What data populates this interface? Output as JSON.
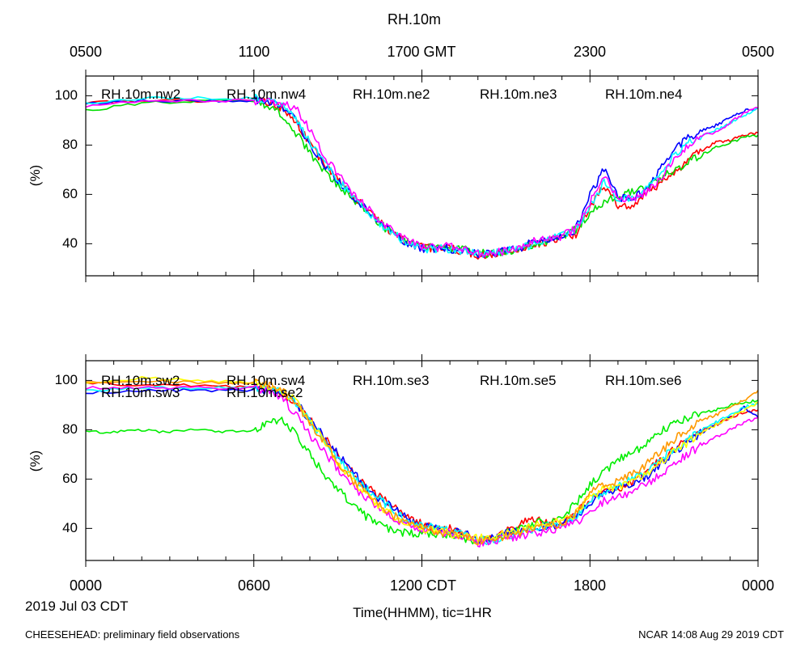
{
  "page_title": "RH.10m",
  "top_axis_ticks": [
    "0500",
    "1100",
    "1700 GMT",
    "2300",
    "0500"
  ],
  "bottom_axis_ticks": [
    "0000",
    "0600",
    "1200 CDT",
    "1800",
    "0000"
  ],
  "date_label": "2019 Jul 03 CDT",
  "xlabel": "Time(HHMM), tic=1HR",
  "footer_left": "CHEESEHEAD: preliminary field observations",
  "footer_right": "NCAR 14:08 Aug 29 2019 CDT",
  "chart_data": [
    {
      "type": "line",
      "ylabel": "(%)",
      "ylim": [
        27,
        108
      ],
      "xlim": [
        0,
        24
      ],
      "x_units": "hours CDT",
      "yticks": [
        40,
        60,
        80,
        100
      ],
      "series": [
        {
          "name": "RH.10m.nw2",
          "color": "#ff0000",
          "x": [
            0,
            2,
            4,
            6,
            6.5,
            7,
            7.5,
            8,
            8.5,
            9,
            9.5,
            10,
            10.5,
            11,
            11.5,
            12,
            12.5,
            13,
            13.5,
            14,
            14.5,
            15,
            15.5,
            16,
            16.5,
            17,
            17.5,
            18,
            18.5,
            19,
            19.5,
            20,
            20.5,
            21,
            21.5,
            22,
            22.5,
            23,
            23.5,
            24
          ],
          "y": [
            97,
            98,
            98,
            98,
            97,
            95,
            90,
            80,
            73,
            66,
            60,
            54,
            49,
            44,
            40,
            39,
            38,
            38,
            37,
            35,
            36,
            37,
            38,
            40,
            41,
            42,
            44,
            55,
            64,
            55,
            56,
            60,
            64,
            69,
            74,
            78,
            81,
            82,
            84,
            85
          ]
        },
        {
          "name": "RH.10m.nw4",
          "color": "#00dd00",
          "x": [
            0,
            2,
            4,
            6,
            6.5,
            7,
            7.5,
            8,
            8.5,
            9,
            9.5,
            10,
            10.5,
            11,
            11.5,
            12,
            12.5,
            13,
            13.5,
            14,
            14.5,
            15,
            15.5,
            16,
            16.5,
            17,
            17.5,
            18,
            18.5,
            19,
            19.5,
            20,
            20.5,
            21,
            21.5,
            22,
            22.5,
            23,
            23.5,
            24
          ],
          "y": [
            94,
            97,
            98,
            98,
            96,
            92,
            85,
            77,
            70,
            64,
            59,
            53,
            48,
            44,
            41,
            39,
            38,
            38,
            38,
            36,
            36,
            37,
            38,
            40,
            41,
            43,
            46,
            52,
            57,
            59,
            61,
            63,
            66,
            70,
            73,
            76,
            79,
            81,
            83,
            84
          ]
        },
        {
          "name": "RH.10m.ne2",
          "color": "#0000ff",
          "x": [
            0,
            2,
            4,
            6,
            6.5,
            7,
            7.5,
            8,
            8.5,
            9,
            9.5,
            10,
            10.5,
            11,
            11.5,
            12,
            12.5,
            13,
            13.5,
            14,
            14.5,
            15,
            15.5,
            16,
            16.5,
            17,
            17.5,
            18,
            18.5,
            19,
            19.5,
            20,
            20.5,
            21,
            21.5,
            22,
            22.5,
            23,
            23.5,
            24
          ],
          "y": [
            97,
            98,
            98,
            98,
            98,
            96,
            90,
            80,
            72,
            66,
            59,
            54,
            48,
            44,
            40,
            38,
            38,
            38,
            37,
            36,
            36,
            37,
            38,
            41,
            42,
            43,
            46,
            60,
            70,
            59,
            58,
            62,
            70,
            78,
            83,
            86,
            88,
            91,
            94,
            95
          ]
        },
        {
          "name": "RH.10m.ne3",
          "color": "#00ffff",
          "x": [
            0,
            2,
            4,
            6,
            6.5,
            7,
            7.5,
            8,
            8.5,
            9,
            9.5,
            10,
            10.5,
            11,
            11.5,
            12,
            12.5,
            13,
            13.5,
            14,
            14.5,
            15,
            15.5,
            16,
            16.5,
            17,
            17.5,
            18,
            18.5,
            19,
            19.5,
            20,
            20.5,
            21,
            21.5,
            22,
            22.5,
            23,
            23.5,
            24
          ],
          "y": [
            97,
            99,
            99,
            99,
            98,
            96,
            91,
            81,
            73,
            66,
            60,
            54,
            48,
            44,
            40,
            38,
            38,
            38,
            37,
            36,
            36,
            37,
            38,
            40,
            42,
            43,
            46,
            55,
            65,
            58,
            58,
            62,
            68,
            76,
            81,
            84,
            86,
            89,
            92,
            95
          ]
        },
        {
          "name": "RH.10m.ne4",
          "color": "#ff00ff",
          "x": [
            0,
            2,
            4,
            6,
            6.5,
            7,
            7.5,
            8,
            8.5,
            9,
            9.5,
            10,
            10.5,
            11,
            11.5,
            12,
            12.5,
            13,
            13.5,
            14,
            14.5,
            15,
            15.5,
            16,
            16.5,
            17,
            17.5,
            18,
            18.5,
            19,
            19.5,
            20,
            20.5,
            21,
            21.5,
            22,
            22.5,
            23,
            23.5,
            24
          ],
          "y": [
            96,
            98,
            98,
            98,
            98,
            97,
            95,
            86,
            76,
            68,
            61,
            55,
            49,
            45,
            41,
            39,
            38,
            39,
            38,
            36,
            36,
            37,
            39,
            41,
            42,
            43,
            46,
            57,
            67,
            59,
            58,
            61,
            66,
            74,
            80,
            84,
            85,
            89,
            93,
            95
          ]
        }
      ]
    },
    {
      "type": "line",
      "ylabel": "(%)",
      "ylim": [
        27,
        108
      ],
      "xlim": [
        0,
        24
      ],
      "x_units": "hours CDT",
      "yticks": [
        40,
        60,
        80,
        100
      ],
      "series": [
        {
          "name": "RH.10m.sw2",
          "color": "#ff0000",
          "x": [
            0,
            2,
            4,
            6,
            6.5,
            7,
            7.5,
            8,
            8.5,
            9,
            9.5,
            10,
            10.5,
            11,
            11.5,
            12,
            12.5,
            13,
            13.5,
            14,
            14.5,
            15,
            15.5,
            16,
            16.5,
            17,
            17.5,
            18,
            18.5,
            19,
            19.5,
            20,
            20.5,
            21,
            21.5,
            22,
            22.5,
            23,
            23.5,
            24
          ],
          "y": [
            99,
            98,
            98,
            97,
            97,
            95,
            90,
            84,
            77,
            70,
            63,
            57,
            53,
            49,
            45,
            42,
            40,
            40,
            38,
            35,
            36,
            39,
            42,
            44,
            42,
            43,
            46,
            52,
            55,
            56,
            58,
            63,
            68,
            72,
            76,
            80,
            82,
            85,
            87,
            88
          ]
        },
        {
          "name": "RH.10m.sw3",
          "color": "#00ee00",
          "x": [
            0,
            1,
            2,
            3,
            4,
            5,
            6,
            6.5,
            7,
            7.5,
            8,
            8.5,
            9,
            9.5,
            10,
            10.5,
            11,
            11.5,
            12,
            12.5,
            13,
            13.5,
            14,
            14.5,
            15,
            15.5,
            16,
            16.5,
            17,
            17.5,
            18,
            18.5,
            19,
            19.5,
            20,
            20.5,
            21,
            21.5,
            22,
            22.5,
            23,
            23.5,
            24
          ],
          "y": [
            79,
            79,
            80,
            79,
            80,
            79,
            80,
            82,
            85,
            78,
            70,
            62,
            56,
            50,
            45,
            42,
            39,
            38,
            38,
            37,
            38,
            36,
            35,
            36,
            38,
            40,
            42,
            43,
            45,
            50,
            58,
            63,
            68,
            71,
            74,
            79,
            82,
            85,
            87,
            88,
            90,
            91,
            92
          ]
        },
        {
          "name": "RH.10m.sw4",
          "color": "#0000ff",
          "x": [
            0,
            2,
            4,
            6,
            6.5,
            7,
            7.5,
            8,
            8.5,
            9,
            9.5,
            10,
            10.5,
            11,
            11.5,
            12,
            12.5,
            13,
            13.5,
            14,
            14.5,
            15,
            15.5,
            16,
            16.5,
            17,
            17.5,
            18,
            18.5,
            19,
            19.5,
            20,
            20.5,
            21,
            21.5,
            22,
            22.5,
            23,
            23.5,
            24
          ],
          "y": [
            95,
            96,
            96,
            96,
            96,
            95,
            91,
            84,
            77,
            70,
            63,
            57,
            52,
            48,
            44,
            41,
            40,
            39,
            38,
            35,
            36,
            38,
            39,
            40,
            41,
            42,
            45,
            50,
            54,
            56,
            58,
            61,
            66,
            71,
            75,
            79,
            82,
            85,
            89,
            85
          ]
        },
        {
          "name": "RH.10m.se2",
          "color": "#00ffff",
          "x": [
            0,
            2,
            4,
            6,
            6.5,
            7,
            7.5,
            8,
            8.5,
            9,
            9.5,
            10,
            10.5,
            11,
            11.5,
            12,
            12.5,
            13,
            13.5,
            14,
            14.5,
            15,
            15.5,
            16,
            16.5,
            17,
            17.5,
            18,
            18.5,
            19,
            19.5,
            20,
            20.5,
            21,
            21.5,
            22,
            22.5,
            23,
            23.5,
            24
          ],
          "y": [
            96,
            97,
            97,
            97,
            97,
            95,
            91,
            84,
            76,
            69,
            62,
            56,
            52,
            47,
            43,
            41,
            40,
            39,
            38,
            35,
            35,
            37,
            38,
            40,
            41,
            42,
            45,
            51,
            55,
            57,
            60,
            63,
            68,
            72,
            76,
            80,
            83,
            86,
            89,
            91
          ]
        },
        {
          "name": "RH.10m.se3",
          "color": "#ff00ff",
          "x": [
            0,
            2,
            4,
            6,
            6.5,
            7,
            7.5,
            8,
            8.5,
            9,
            9.5,
            10,
            10.5,
            11,
            11.5,
            12,
            12.5,
            13,
            13.5,
            14,
            14.5,
            15,
            15.5,
            16,
            16.5,
            17,
            17.5,
            18,
            18.5,
            19,
            19.5,
            20,
            20.5,
            21,
            21.5,
            22,
            22.5,
            23,
            23.5,
            24
          ],
          "y": [
            97,
            97,
            97,
            97,
            96,
            93,
            86,
            78,
            71,
            64,
            58,
            52,
            48,
            44,
            41,
            39,
            39,
            38,
            37,
            34,
            35,
            36,
            37,
            38,
            39,
            40,
            42,
            47,
            51,
            53,
            55,
            58,
            62,
            66,
            70,
            74,
            77,
            80,
            83,
            85
          ]
        },
        {
          "name": "RH.10m.se5",
          "color": "#ffff00",
          "x": [
            0,
            2,
            4,
            6,
            6.5,
            7,
            7.5,
            8,
            8.5,
            9,
            9.5,
            10,
            10.5,
            11,
            11.5,
            12,
            12.5,
            13,
            13.5,
            14,
            14.5,
            15,
            15.5,
            16,
            16.5,
            17,
            17.5,
            18,
            18.5,
            19,
            19.5,
            20,
            20.5,
            21,
            21.5,
            22,
            22.5,
            23,
            23.5,
            24
          ],
          "y": [
            99,
            101,
            100,
            99,
            98,
            96,
            92,
            84,
            75,
            67,
            60,
            54,
            49,
            45,
            42,
            40,
            39,
            38,
            37,
            36,
            36,
            38,
            39,
            41,
            42,
            43,
            46,
            53,
            56,
            57,
            59,
            62,
            67,
            71,
            75,
            79,
            82,
            85,
            88,
            91
          ]
        },
        {
          "name": "RH.10m.se6",
          "color": "#ff9900",
          "x": [
            0,
            2,
            4,
            6,
            6.5,
            7,
            7.5,
            8,
            8.5,
            9,
            9.5,
            10,
            10.5,
            11,
            11.5,
            12,
            12.5,
            13,
            13.5,
            14,
            14.5,
            15,
            15.5,
            16,
            16.5,
            17,
            17.5,
            18,
            18.5,
            19,
            19.5,
            20,
            20.5,
            21,
            21.5,
            22,
            22.5,
            23,
            23.5,
            24
          ],
          "y": [
            99,
            100,
            99,
            99,
            98,
            96,
            91,
            83,
            75,
            67,
            60,
            54,
            49,
            45,
            42,
            40,
            39,
            38,
            37,
            35,
            36,
            37,
            38,
            40,
            41,
            42,
            46,
            54,
            58,
            59,
            62,
            66,
            71,
            76,
            80,
            84,
            86,
            89,
            92,
            96
          ]
        }
      ]
    }
  ]
}
